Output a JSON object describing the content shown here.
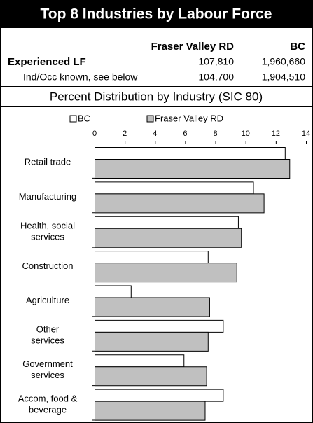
{
  "title": "Top 8 Industries by Labour Force",
  "table": {
    "columns": [
      "Fraser Valley RD",
      "BC"
    ],
    "rows": [
      [
        "Experienced LF",
        "107,810",
        "1,960,660"
      ],
      [
        "Ind/Occ known, see below",
        "104,700",
        "1,904,510"
      ]
    ]
  },
  "chart_data": {
    "type": "bar",
    "orientation": "horizontal",
    "title": "Percent Distribution by Industry (SIC 80)",
    "categories": [
      "Retail trade",
      "Manufacturing",
      "Health, social\nservices",
      "Construction",
      "Agriculture",
      "Other\nservices",
      "Government\nservices",
      "Accom, food &\nbeverage"
    ],
    "series": [
      {
        "name": "BC",
        "color": "#ffffff",
        "values": [
          12.6,
          10.5,
          9.5,
          7.5,
          2.4,
          8.5,
          5.9,
          8.5
        ]
      },
      {
        "name": "Fraser Valley RD",
        "color": "#c0c0c0",
        "values": [
          12.9,
          11.2,
          9.7,
          9.4,
          7.6,
          7.5,
          7.4,
          7.3
        ]
      }
    ],
    "xlim": [
      0,
      14
    ],
    "xticks": [
      0,
      2,
      4,
      6,
      8,
      10,
      12,
      14
    ],
    "legend": "top"
  }
}
